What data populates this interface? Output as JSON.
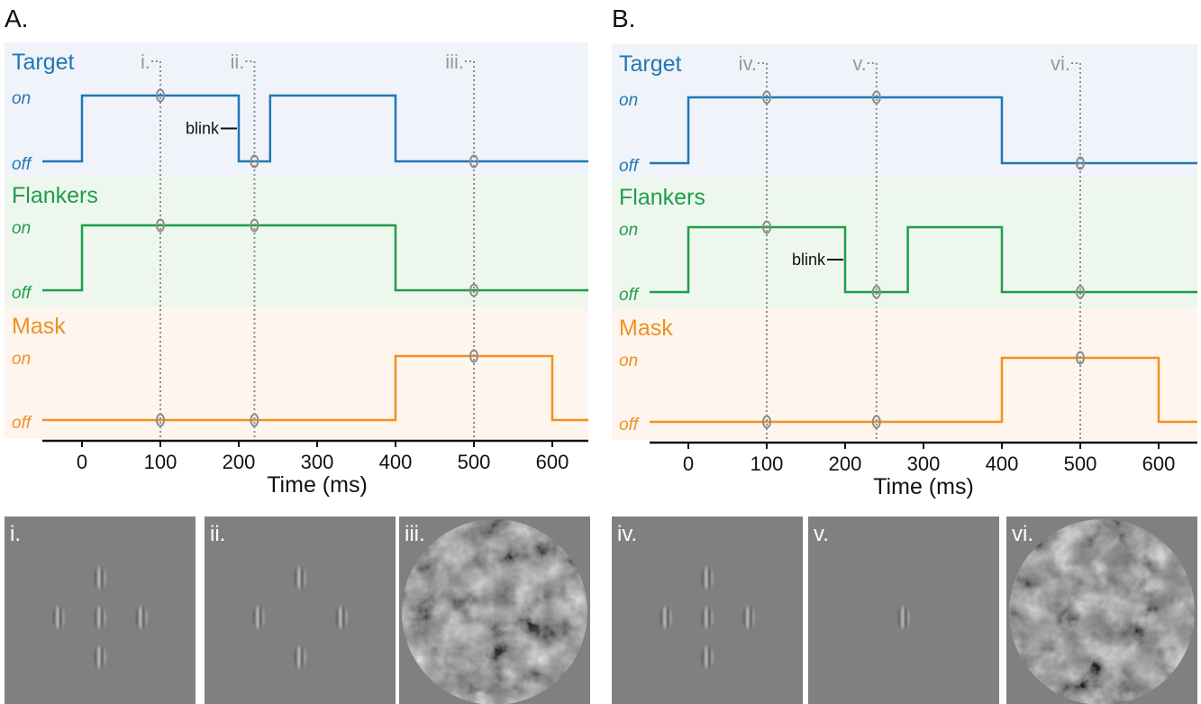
{
  "colors": {
    "target": "#1f78b4",
    "flankers": "#1e9e4a",
    "mask": "#f0911f",
    "target_bg": "#f1f3fa",
    "flankers_bg": "#eef7ee",
    "mask_bg": "#fdf5ee",
    "marker": "#8c8c8c",
    "stimulus_bg": "#808080"
  },
  "axis_label": "Time (ms)",
  "ticks": [
    "0",
    "100",
    "200",
    "300",
    "400",
    "500",
    "600"
  ],
  "level_on": "on",
  "level_off": "off",
  "blink_label": "blink",
  "panels": [
    {
      "label": "A.",
      "rows": [
        {
          "name": "Target",
          "color_key": "target",
          "segments": [
            [
              0,
              200
            ],
            [
              240,
              400
            ]
          ]
        },
        {
          "name": "Flankers",
          "color_key": "flankers",
          "segments": [
            [
              0,
              400
            ]
          ]
        },
        {
          "name": "Mask",
          "color_key": "mask",
          "segments": [
            [
              400,
              600
            ]
          ]
        }
      ],
      "blink_row": 0,
      "blink_time": 200,
      "markers": [
        {
          "label": "i.",
          "time": 100
        },
        {
          "label": "ii.",
          "time": 220
        },
        {
          "label": "iii.",
          "time": 500
        }
      ],
      "stimuli": [
        {
          "label": "i.",
          "kind": "target-flankers"
        },
        {
          "label": "ii.",
          "kind": "flankers-only"
        },
        {
          "label": "iii.",
          "kind": "mask"
        }
      ]
    },
    {
      "label": "B.",
      "rows": [
        {
          "name": "Target",
          "color_key": "target",
          "segments": [
            [
              0,
              400
            ]
          ]
        },
        {
          "name": "Flankers",
          "color_key": "flankers",
          "segments": [
            [
              0,
              200
            ],
            [
              280,
              400
            ]
          ]
        },
        {
          "name": "Mask",
          "color_key": "mask",
          "segments": [
            [
              400,
              600
            ]
          ]
        }
      ],
      "blink_row": 1,
      "blink_time": 200,
      "markers": [
        {
          "label": "iv.",
          "time": 100
        },
        {
          "label": "v.",
          "time": 240
        },
        {
          "label": "vi.",
          "time": 500
        }
      ],
      "stimuli": [
        {
          "label": "iv.",
          "kind": "target-flankers"
        },
        {
          "label": "v.",
          "kind": "target-only"
        },
        {
          "label": "vi.",
          "kind": "mask"
        }
      ]
    }
  ]
}
